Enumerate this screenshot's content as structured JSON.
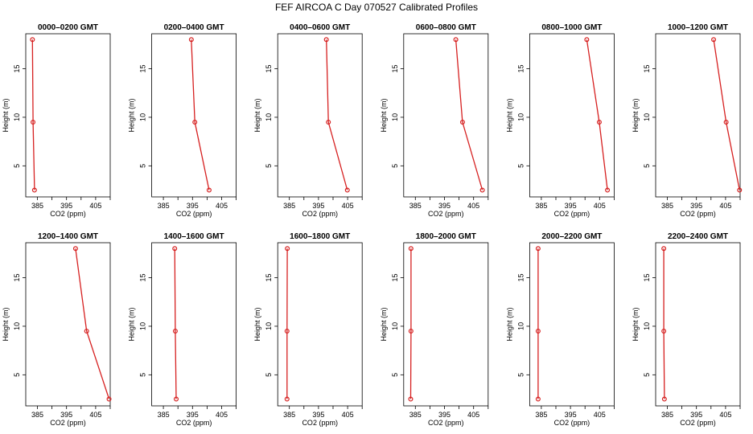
{
  "figure": {
    "title": "FEF AIRCOA C  Day 070527  Calibrated Profiles"
  },
  "chart_data": [
    {
      "type": "line",
      "title": "0000–0200 GMT",
      "xlabel": "CO2 (ppm)",
      "ylabel": "Height (m)",
      "xlim": [
        381,
        410
      ],
      "ylim": [
        1.8,
        18.6
      ],
      "xticks": [
        385,
        390,
        395,
        400,
        405,
        410
      ],
      "xtick_labels": [
        "385",
        "",
        "395",
        "",
        "405",
        ""
      ],
      "yticks": [
        5,
        10,
        15
      ],
      "y": [
        2.5,
        9.5,
        18
      ],
      "x": [
        384.0,
        383.5,
        383.3
      ],
      "line_color": "#d62020",
      "marker": "open-circle",
      "grid": false,
      "legend": "none"
    },
    {
      "type": "line",
      "title": "0200–0400 GMT",
      "xlabel": "CO2 (ppm)",
      "ylabel": "Height (m)",
      "xlim": [
        381,
        410
      ],
      "ylim": [
        1.8,
        18.6
      ],
      "xticks": [
        385,
        390,
        395,
        400,
        405,
        410
      ],
      "xtick_labels": [
        "385",
        "",
        "395",
        "",
        "405",
        ""
      ],
      "yticks": [
        5,
        10,
        15
      ],
      "y": [
        2.5,
        9.5,
        18
      ],
      "x": [
        400.7,
        395.8,
        394.6
      ],
      "line_color": "#d62020",
      "marker": "open-circle",
      "grid": false,
      "legend": "none"
    },
    {
      "type": "line",
      "title": "0400–0600 GMT",
      "xlabel": "CO2 (ppm)",
      "ylabel": "Height (m)",
      "xlim": [
        381,
        410
      ],
      "ylim": [
        1.8,
        18.6
      ],
      "xticks": [
        385,
        390,
        395,
        400,
        405,
        410
      ],
      "xtick_labels": [
        "385",
        "",
        "395",
        "",
        "405",
        ""
      ],
      "yticks": [
        5,
        10,
        15
      ],
      "y": [
        2.5,
        9.5,
        18
      ],
      "x": [
        404.9,
        398.4,
        397.7
      ],
      "line_color": "#d62020",
      "marker": "open-circle",
      "grid": false,
      "legend": "none"
    },
    {
      "type": "line",
      "title": "0600–0800 GMT",
      "xlabel": "CO2 (ppm)",
      "ylabel": "Height (m)",
      "xlim": [
        381,
        410
      ],
      "ylim": [
        1.8,
        18.6
      ],
      "xticks": [
        385,
        390,
        395,
        400,
        405,
        410
      ],
      "xtick_labels": [
        "385",
        "",
        "395",
        "",
        "405",
        ""
      ],
      "yticks": [
        5,
        10,
        15
      ],
      "y": [
        2.5,
        9.5,
        18
      ],
      "x": [
        408.0,
        401.2,
        398.9
      ],
      "line_color": "#d62020",
      "marker": "open-circle",
      "grid": false,
      "legend": "none"
    },
    {
      "type": "line",
      "title": "0800–1000 GMT",
      "xlabel": "CO2 (ppm)",
      "ylabel": "Height (m)",
      "xlim": [
        381,
        410
      ],
      "ylim": [
        1.8,
        18.6
      ],
      "xticks": [
        385,
        390,
        395,
        400,
        405,
        410
      ],
      "xtick_labels": [
        "385",
        "",
        "395",
        "",
        "405",
        ""
      ],
      "yticks": [
        5,
        10,
        15
      ],
      "y": [
        2.5,
        9.5,
        18
      ],
      "x": [
        407.7,
        404.9,
        400.6
      ],
      "line_color": "#d62020",
      "marker": "open-circle",
      "grid": false,
      "legend": "none"
    },
    {
      "type": "line",
      "title": "1000–1200 GMT",
      "xlabel": "CO2 (ppm)",
      "ylabel": "Height (m)",
      "xlim": [
        381,
        410
      ],
      "ylim": [
        1.8,
        18.6
      ],
      "xticks": [
        385,
        390,
        395,
        400,
        405,
        410
      ],
      "xtick_labels": [
        "385",
        "",
        "395",
        "",
        "405",
        ""
      ],
      "yticks": [
        5,
        10,
        15
      ],
      "y": [
        2.5,
        9.5,
        18
      ],
      "x": [
        409.8,
        405.2,
        400.9
      ],
      "line_color": "#d62020",
      "marker": "open-circle",
      "grid": false,
      "legend": "none"
    },
    {
      "type": "line",
      "title": "1200–1400 GMT",
      "xlabel": "CO2 (ppm)",
      "ylabel": "Height (m)",
      "xlim": [
        381,
        410
      ],
      "ylim": [
        1.8,
        18.6
      ],
      "xticks": [
        385,
        390,
        395,
        400,
        405,
        410
      ],
      "xtick_labels": [
        "385",
        "",
        "395",
        "",
        "405",
        ""
      ],
      "yticks": [
        5,
        10,
        15
      ],
      "y": [
        2.5,
        9.5,
        18
      ],
      "x": [
        409.6,
        401.9,
        398.1
      ],
      "line_color": "#d62020",
      "marker": "open-circle",
      "grid": false,
      "legend": "none"
    },
    {
      "type": "line",
      "title": "1400–1600 GMT",
      "xlabel": "CO2 (ppm)",
      "ylabel": "Height (m)",
      "xlim": [
        381,
        410
      ],
      "ylim": [
        1.8,
        18.6
      ],
      "xticks": [
        385,
        390,
        395,
        400,
        405,
        410
      ],
      "xtick_labels": [
        "385",
        "",
        "395",
        "",
        "405",
        ""
      ],
      "yticks": [
        5,
        10,
        15
      ],
      "y": [
        2.5,
        9.5,
        18
      ],
      "x": [
        389.4,
        389.1,
        388.9
      ],
      "line_color": "#d62020",
      "marker": "open-circle",
      "grid": false,
      "legend": "none"
    },
    {
      "type": "line",
      "title": "1600–1800 GMT",
      "xlabel": "CO2 (ppm)",
      "ylabel": "Height (m)",
      "xlim": [
        381,
        410
      ],
      "ylim": [
        1.8,
        18.6
      ],
      "xticks": [
        385,
        390,
        395,
        400,
        405,
        410
      ],
      "xtick_labels": [
        "385",
        "",
        "395",
        "",
        "405",
        ""
      ],
      "yticks": [
        5,
        10,
        15
      ],
      "y": [
        2.5,
        9.5,
        18
      ],
      "x": [
        384.2,
        384.2,
        384.3
      ],
      "line_color": "#d62020",
      "marker": "open-circle",
      "grid": false,
      "legend": "none"
    },
    {
      "type": "line",
      "title": "1800–2000 GMT",
      "xlabel": "CO2 (ppm)",
      "ylabel": "Height (m)",
      "xlim": [
        381,
        410
      ],
      "ylim": [
        1.8,
        18.6
      ],
      "xticks": [
        385,
        390,
        395,
        400,
        405,
        410
      ],
      "xtick_labels": [
        "385",
        "",
        "395",
        "",
        "405",
        ""
      ],
      "yticks": [
        5,
        10,
        15
      ],
      "y": [
        2.5,
        9.5,
        18
      ],
      "x": [
        383.4,
        383.5,
        383.5
      ],
      "line_color": "#d62020",
      "marker": "open-circle",
      "grid": false,
      "legend": "none"
    },
    {
      "type": "line",
      "title": "2000–2200 GMT",
      "xlabel": "CO2 (ppm)",
      "ylabel": "Height (m)",
      "xlim": [
        381,
        410
      ],
      "ylim": [
        1.8,
        18.6
      ],
      "xticks": [
        385,
        390,
        395,
        400,
        405,
        410
      ],
      "xtick_labels": [
        "385",
        "",
        "395",
        "",
        "405",
        ""
      ],
      "yticks": [
        5,
        10,
        15
      ],
      "y": [
        2.5,
        9.5,
        18
      ],
      "x": [
        383.9,
        383.9,
        383.9
      ],
      "line_color": "#d62020",
      "marker": "open-circle",
      "grid": false,
      "legend": "none"
    },
    {
      "type": "line",
      "title": "2200–2400 GMT",
      "xlabel": "CO2 (ppm)",
      "ylabel": "Height (m)",
      "xlim": [
        381,
        410
      ],
      "ylim": [
        1.8,
        18.6
      ],
      "xticks": [
        385,
        390,
        395,
        400,
        405,
        410
      ],
      "xtick_labels": [
        "385",
        "",
        "395",
        "",
        "405",
        ""
      ],
      "yticks": [
        5,
        10,
        15
      ],
      "y": [
        2.5,
        9.5,
        18
      ],
      "x": [
        384.0,
        383.8,
        383.8
      ],
      "line_color": "#d62020",
      "marker": "open-circle",
      "grid": false,
      "legend": "none"
    }
  ]
}
